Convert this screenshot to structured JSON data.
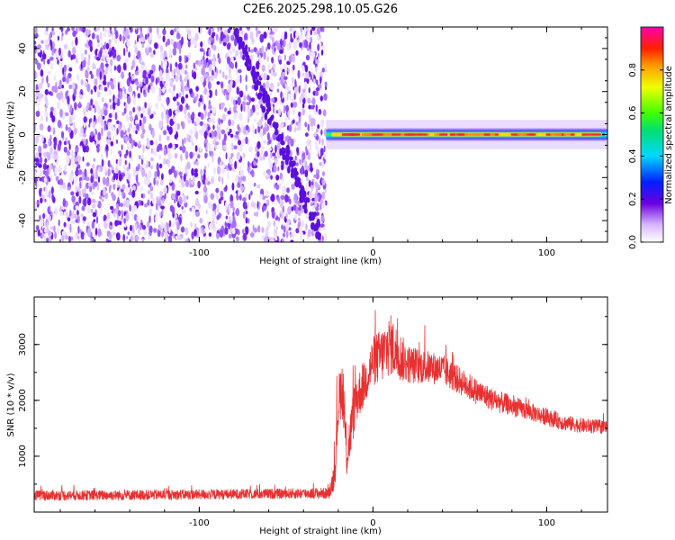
{
  "figure_title": "C2E6.2025.298.10.05.G26",
  "colors": {
    "axis": "#000000",
    "snr_line": "#e83030",
    "noise_purple": "#7a1cf0"
  },
  "chart_data": [
    {
      "type": "heatmap",
      "title": "C2E6.2025.298.10.05.G26",
      "xlabel": "Height of straight line (km)",
      "ylabel": "Frequency (Hz)",
      "xlim": [
        -195,
        135
      ],
      "ylim": [
        -50,
        50
      ],
      "xticks": [
        -100,
        0,
        100
      ],
      "yticks": [
        -40,
        -20,
        0,
        20,
        40
      ],
      "noise_region_x": [
        -195,
        -27
      ],
      "signal_band": {
        "x_range": [
          -27,
          135
        ],
        "frequency_hz": 0,
        "half_width_hz": 2
      },
      "diagonal_ridge": {
        "from": [
          -80,
          50
        ],
        "to": [
          -30,
          -48
        ]
      },
      "colorbar": {
        "label": "Normalized spectral amplitude",
        "range": [
          0,
          1
        ],
        "ticks": [
          0.0,
          0.2,
          0.4,
          0.6,
          0.8
        ],
        "tick_labels": [
          "0.0",
          "0.2",
          "0.4",
          "0.6",
          "0.8"
        ]
      }
    },
    {
      "type": "line",
      "xlabel": "Height of straight line (km)",
      "ylabel": "SNR (10 * v/v)",
      "xlim": [
        -195,
        135
      ],
      "ylim": [
        0,
        3850
      ],
      "xticks": [
        -100,
        0,
        100
      ],
      "yticks": [
        1000,
        2000,
        3000
      ],
      "grid": false,
      "series": [
        {
          "envelope_x": [
            -195,
            -160,
            -120,
            -80,
            -50,
            -25,
            -22,
            -20,
            -18,
            -15,
            -12,
            -10,
            -5,
            0,
            5,
            10,
            15,
            20,
            30,
            40,
            50,
            60,
            70,
            80,
            90,
            100,
            110,
            120,
            135
          ],
          "envelope_y": [
            300,
            300,
            310,
            320,
            330,
            340,
            700,
            1900,
            2300,
            1000,
            1600,
            2000,
            2300,
            2700,
            2800,
            3000,
            2800,
            2650,
            2600,
            2550,
            2350,
            2150,
            2000,
            1900,
            1800,
            1700,
            1600,
            1550,
            1520
          ],
          "noise_amplitude": [
            90,
            90,
            90,
            90,
            90,
            100,
            300,
            500,
            500,
            400,
            450,
            450,
            400,
            450,
            500,
            550,
            450,
            350,
            300,
            280,
            250,
            230,
            200,
            180,
            160,
            150,
            140,
            130,
            120
          ]
        }
      ]
    }
  ]
}
